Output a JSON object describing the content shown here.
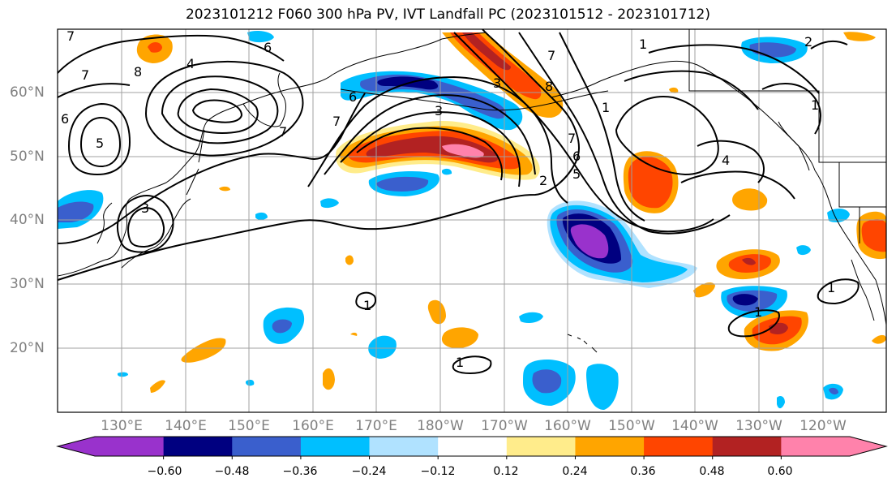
{
  "title": "2023101212 F060 300 hPa PV, IVT Landfall PC (2023101512 - 2023101712)",
  "lat_labels": [
    "60°N",
    "50°N",
    "40°N",
    "30°N",
    "20°N"
  ],
  "lon_labels": [
    "130°E",
    "140°E",
    "150°E",
    "160°E",
    "170°E",
    "180°W",
    "170°W",
    "160°W",
    "150°W",
    "140°W",
    "130°W",
    "120°W"
  ],
  "colorbar": {
    "ticks": [
      "−0.60",
      "−0.48",
      "−0.36",
      "−0.24",
      "−0.12",
      "0.12",
      "0.24",
      "0.36",
      "0.48",
      "0.60"
    ],
    "colors": [
      "#9932cc",
      "#000080",
      "#3a5fcd",
      "#00bfff",
      "#b0e2ff",
      "#ffffff",
      "#ffec8b",
      "#ffa500",
      "#ff4500",
      "#b22222",
      "#ff82ab"
    ]
  },
  "contour_labels": [
    "7",
    "8",
    "4",
    "6",
    "7",
    "5",
    "6",
    "3",
    "7",
    "6",
    "7",
    "3",
    "7",
    "3",
    "2",
    "1",
    "8",
    "7",
    "6",
    "5",
    "1",
    "2",
    "1",
    "4",
    "1",
    "1",
    "1",
    "1"
  ]
}
